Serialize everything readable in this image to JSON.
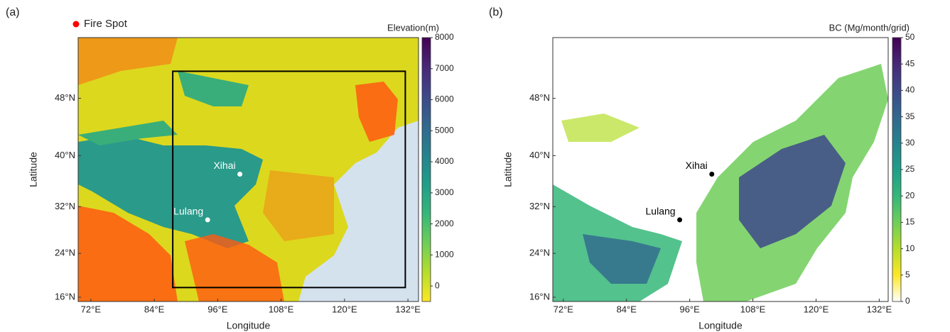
{
  "figure_panels": [
    {
      "label": "(a)",
      "xlabel": "Longitude",
      "ylabel": "Latitude",
      "xlim": [
        69.6,
        134
      ],
      "ylim": [
        15.2,
        55.3
      ],
      "xticks": [
        {
          "value": 72,
          "label": "72°E"
        },
        {
          "value": 84,
          "label": "84°E"
        },
        {
          "value": 96,
          "label": "96°E"
        },
        {
          "value": 108,
          "label": "108°E"
        },
        {
          "value": 120,
          "label": "120°E"
        },
        {
          "value": 132,
          "label": "132°E"
        }
      ],
      "yticks": [
        {
          "value": 16,
          "label": "16°N"
        },
        {
          "value": 24,
          "label": "24°N"
        },
        {
          "value": 32,
          "label": "32°N"
        },
        {
          "value": 40,
          "label": "40°N"
        },
        {
          "value": 48,
          "label": "48°N"
        }
      ],
      "colorbar": {
        "title": "Elevation(m)",
        "lim": [
          -500,
          8000
        ],
        "ticks": [
          0,
          1000,
          2000,
          3000,
          4000,
          5000,
          6000,
          7000,
          8000
        ],
        "colors": [
          "#fde725",
          "#b5de2b",
          "#6ece58",
          "#35b779",
          "#1f9e89",
          "#26828e",
          "#31688e",
          "#3e4989",
          "#482878",
          "#440154"
        ]
      },
      "place_color": "#ffffff"
    },
    {
      "label": "(b)",
      "xlabel": "Longitude",
      "ylabel": "Latitude",
      "xlim": [
        70,
        133.7
      ],
      "ylim": [
        15.2,
        55.3
      ],
      "xticks": [
        {
          "value": 72,
          "label": "72°E"
        },
        {
          "value": 84,
          "label": "84°E"
        },
        {
          "value": 96,
          "label": "96°E"
        },
        {
          "value": 108,
          "label": "108°E"
        },
        {
          "value": 120,
          "label": "120°E"
        },
        {
          "value": 132,
          "label": "132°E"
        }
      ],
      "yticks": [
        {
          "value": 16,
          "label": "16°N"
        },
        {
          "value": 24,
          "label": "24°N"
        },
        {
          "value": 32,
          "label": "32°N"
        },
        {
          "value": 40,
          "label": "40°N"
        },
        {
          "value": 48,
          "label": "48°N"
        }
      ],
      "colorbar": {
        "title": "BC (Mg/month/grid)",
        "lim": [
          0,
          50
        ],
        "ticks": [
          0,
          5,
          10,
          15,
          20,
          25,
          30,
          35,
          40,
          45,
          50
        ],
        "colors": [
          "#ffffff",
          "#fde725",
          "#b5de2b",
          "#6ece58",
          "#35b779",
          "#1f9e89",
          "#26828e",
          "#31688e",
          "#3e4989",
          "#482878",
          "#440154"
        ]
      },
      "place_color": "#000000"
    }
  ],
  "legend": {
    "label": "Fire Spot",
    "color": "#ff0000"
  },
  "places": [
    {
      "name": "Xihai",
      "lon": 100.2,
      "lat": 37.2
    },
    {
      "name": "Lulang",
      "lon": 94.1,
      "lat": 29.8
    }
  ],
  "domain_box": {
    "lon": [
      87.5,
      131.5
    ],
    "lat": [
      17.8,
      51.4
    ]
  }
}
